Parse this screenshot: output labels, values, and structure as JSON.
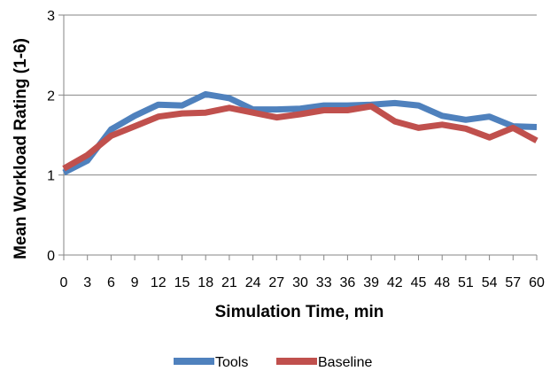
{
  "chart_data": {
    "type": "line",
    "title": "",
    "xlabel": "Simulation Time, min",
    "ylabel": "Mean Workload Rating (1-6)",
    "x": [
      0,
      3,
      6,
      9,
      12,
      15,
      18,
      21,
      24,
      27,
      30,
      33,
      36,
      39,
      42,
      45,
      48,
      51,
      54,
      57,
      60
    ],
    "x_tick_labels": [
      "0",
      "3",
      "6",
      "9",
      "12",
      "15",
      "18",
      "21",
      "24",
      "27",
      "30",
      "33",
      "36",
      "39",
      "42",
      "45",
      "48",
      "51",
      "54",
      "57",
      "60"
    ],
    "y_tick_labels": [
      "0",
      "1",
      "2",
      "3"
    ],
    "ylim": [
      0,
      3
    ],
    "grid": "horizontal",
    "legend_position": "bottom",
    "series": [
      {
        "name": "Tools",
        "color": "#4f81bd",
        "values": [
          1.03,
          1.18,
          1.57,
          1.74,
          1.88,
          1.87,
          2.01,
          1.96,
          1.82,
          1.82,
          1.83,
          1.87,
          1.87,
          1.88,
          1.9,
          1.87,
          1.74,
          1.69,
          1.73,
          1.61,
          1.6
        ]
      },
      {
        "name": "Baseline",
        "color": "#c0504d",
        "values": [
          1.08,
          1.25,
          1.49,
          1.61,
          1.73,
          1.77,
          1.78,
          1.84,
          1.78,
          1.72,
          1.76,
          1.81,
          1.81,
          1.86,
          1.67,
          1.59,
          1.63,
          1.58,
          1.47,
          1.59,
          1.43
        ]
      }
    ]
  }
}
